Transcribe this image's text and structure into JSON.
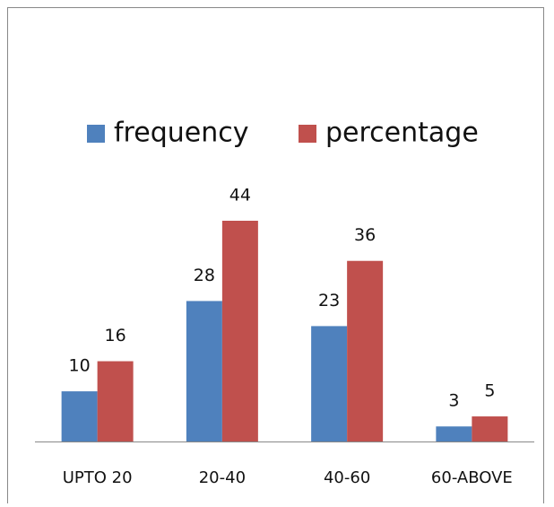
{
  "chart_data": {
    "type": "bar",
    "categories": [
      "UPTO 20",
      "20-40",
      "40-60",
      "60-ABOVE"
    ],
    "series": [
      {
        "name": "frequency",
        "color": "#4f81bd",
        "values": [
          10,
          28,
          23,
          3
        ]
      },
      {
        "name": "percentage",
        "color": "#c0504d",
        "values": [
          16,
          44,
          36,
          5
        ]
      }
    ],
    "legend": "top"
  }
}
